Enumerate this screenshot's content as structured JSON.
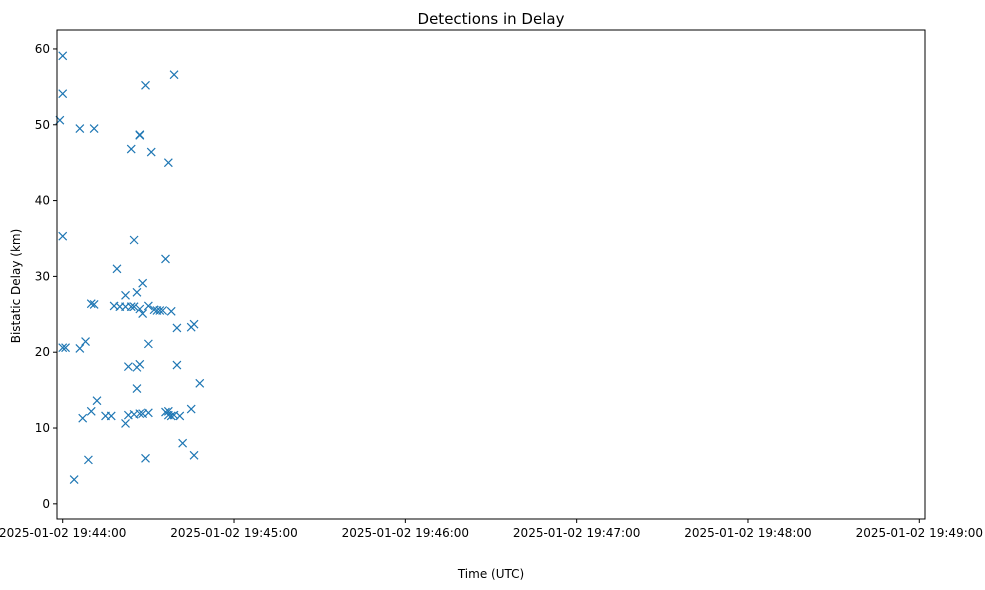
{
  "chart_data": {
    "type": "scatter",
    "title": "Detections in Delay",
    "xlabel": "Time (UTC)",
    "ylabel": "Bistatic Delay (km)",
    "x_ticks": [
      "2025-01-02 19:44:00",
      "2025-01-02 19:45:00",
      "2025-01-02 19:46:00",
      "2025-01-02 19:47:00",
      "2025-01-02 19:48:00",
      "2025-01-02 19:49:00"
    ],
    "y_ticks": [
      "0",
      "10",
      "20",
      "30",
      "40",
      "50",
      "60"
    ],
    "xlim": [
      "2025-01-02 19:43:58",
      "2025-01-02 19:49:02"
    ],
    "ylim": [
      -2.0,
      62.5
    ],
    "grid": false,
    "marker": "x",
    "color": "#1f77b4",
    "series": [
      {
        "points": [
          [
            "2025-01-02 19:43:59",
            50.6
          ],
          [
            "2025-01-02 19:44:00",
            59.1
          ],
          [
            "2025-01-02 19:44:00",
            54.1
          ],
          [
            "2025-01-02 19:44:00",
            35.3
          ],
          [
            "2025-01-02 19:44:00",
            20.6
          ],
          [
            "2025-01-02 19:44:01",
            20.6
          ],
          [
            "2025-01-02 19:44:04",
            3.2
          ],
          [
            "2025-01-02 19:44:06",
            49.5
          ],
          [
            "2025-01-02 19:44:06",
            20.5
          ],
          [
            "2025-01-02 19:44:07",
            11.3
          ],
          [
            "2025-01-02 19:44:08",
            21.4
          ],
          [
            "2025-01-02 19:44:09",
            5.8
          ],
          [
            "2025-01-02 19:44:10",
            26.4
          ],
          [
            "2025-01-02 19:44:10",
            12.2
          ],
          [
            "2025-01-02 19:44:11",
            49.5
          ],
          [
            "2025-01-02 19:44:11",
            26.3
          ],
          [
            "2025-01-02 19:44:12",
            13.6
          ],
          [
            "2025-01-02 19:44:15",
            11.6
          ],
          [
            "2025-01-02 19:44:17",
            11.6
          ],
          [
            "2025-01-02 19:44:18",
            26.1
          ],
          [
            "2025-01-02 19:44:19",
            31.0
          ],
          [
            "2025-01-02 19:44:20",
            26.0
          ],
          [
            "2025-01-02 19:44:22",
            10.6
          ],
          [
            "2025-01-02 19:44:22",
            26.0
          ],
          [
            "2025-01-02 19:44:22",
            27.5
          ],
          [
            "2025-01-02 19:44:23",
            11.7
          ],
          [
            "2025-01-02 19:44:23",
            18.1
          ],
          [
            "2025-01-02 19:44:24",
            46.8
          ],
          [
            "2025-01-02 19:44:24",
            26.0
          ],
          [
            "2025-01-02 19:44:25",
            34.8
          ],
          [
            "2025-01-02 19:44:25",
            11.8
          ],
          [
            "2025-01-02 19:44:25",
            26.0
          ],
          [
            "2025-01-02 19:44:26",
            15.2
          ],
          [
            "2025-01-02 19:44:26",
            27.9
          ],
          [
            "2025-01-02 19:44:26",
            18.0
          ],
          [
            "2025-01-02 19:44:27",
            11.9
          ],
          [
            "2025-01-02 19:44:27",
            18.4
          ],
          [
            "2025-01-02 19:44:27",
            25.7
          ],
          [
            "2025-01-02 19:44:27",
            48.7
          ],
          [
            "2025-01-02 19:44:27",
            48.6
          ],
          [
            "2025-01-02 19:44:28",
            29.1
          ],
          [
            "2025-01-02 19:44:28",
            25.1
          ],
          [
            "2025-01-02 19:44:28",
            11.9
          ],
          [
            "2025-01-02 19:44:29",
            6.0
          ],
          [
            "2025-01-02 19:44:29",
            55.2
          ],
          [
            "2025-01-02 19:44:30",
            12.0
          ],
          [
            "2025-01-02 19:44:30",
            26.1
          ],
          [
            "2025-01-02 19:44:30",
            21.1
          ],
          [
            "2025-01-02 19:44:31",
            46.4
          ],
          [
            "2025-01-02 19:44:32",
            25.6
          ],
          [
            "2025-01-02 19:44:33",
            25.5
          ],
          [
            "2025-01-02 19:44:34",
            25.5
          ],
          [
            "2025-01-02 19:44:35",
            25.5
          ],
          [
            "2025-01-02 19:44:36",
            32.3
          ],
          [
            "2025-01-02 19:44:36",
            12.1
          ],
          [
            "2025-01-02 19:44:37",
            12.2
          ],
          [
            "2025-01-02 19:44:37",
            45.0
          ],
          [
            "2025-01-02 19:44:37",
            11.7
          ],
          [
            "2025-01-02 19:44:38",
            25.4
          ],
          [
            "2025-01-02 19:44:38",
            11.6
          ],
          [
            "2025-01-02 19:44:39",
            56.6
          ],
          [
            "2025-01-02 19:44:39",
            11.7
          ],
          [
            "2025-01-02 19:44:40",
            23.2
          ],
          [
            "2025-01-02 19:44:40",
            18.3
          ],
          [
            "2025-01-02 19:44:41",
            11.6
          ],
          [
            "2025-01-02 19:44:42",
            8.0
          ],
          [
            "2025-01-02 19:44:45",
            12.5
          ],
          [
            "2025-01-02 19:44:45",
            23.3
          ],
          [
            "2025-01-02 19:44:46",
            23.7
          ],
          [
            "2025-01-02 19:44:46",
            6.4
          ],
          [
            "2025-01-02 19:44:48",
            15.9
          ]
        ]
      }
    ]
  }
}
